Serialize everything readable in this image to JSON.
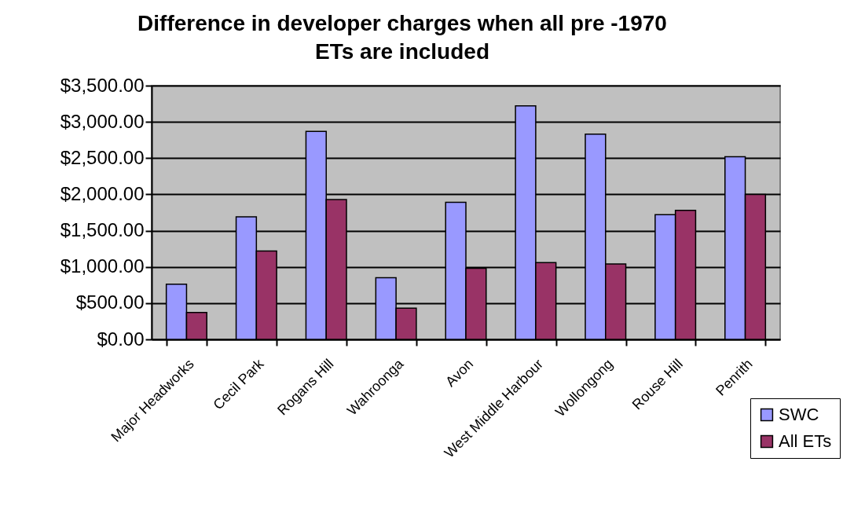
{
  "chart_data": {
    "type": "bar",
    "title": "Difference in developer charges when all pre -1970 ETs are included",
    "categories": [
      "Major Headworks",
      "Cecil Park",
      "Rogans Hill",
      "Wahroonga",
      "Avon",
      "West Middle Harbour",
      "Wollongong",
      "Rouse Hill",
      "Penrith"
    ],
    "series": [
      {
        "name": "SWC",
        "color": "#9999ff",
        "values": [
          760,
          1690,
          2870,
          850,
          1890,
          3220,
          2830,
          1720,
          2520
        ]
      },
      {
        "name": "All ETs",
        "color": "#993366",
        "values": [
          370,
          1220,
          1930,
          430,
          980,
          1060,
          1040,
          1780,
          2000
        ]
      }
    ],
    "ylim": [
      0,
      3500
    ],
    "yticks": [
      {
        "value": 0,
        "label": "$0.00"
      },
      {
        "value": 500,
        "label": "$500.00"
      },
      {
        "value": 1000,
        "label": "$1,000.00"
      },
      {
        "value": 1500,
        "label": "$1,500.00"
      },
      {
        "value": 2000,
        "label": "$2,000.00"
      },
      {
        "value": 2500,
        "label": "$2,500.00"
      },
      {
        "value": 3000,
        "label": "$3,000.00"
      },
      {
        "value": 3500,
        "label": "$3,500.00"
      }
    ],
    "grid": "y",
    "legend": "bottom right"
  }
}
